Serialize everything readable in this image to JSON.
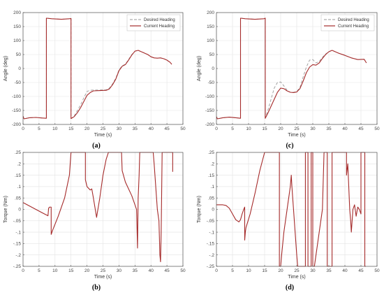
{
  "chart_data": [
    {
      "type": "line",
      "panel_label": "(a)",
      "xlabel": "Time (s)",
      "ylabel": "Angle (deg)",
      "xlim": [
        0,
        50
      ],
      "ylim": [
        -200,
        200
      ],
      "xticks": [
        0,
        5,
        10,
        15,
        20,
        25,
        30,
        35,
        40,
        45,
        50
      ],
      "yticks": [
        -200,
        -150,
        -100,
        -50,
        0,
        50,
        100,
        150,
        200
      ],
      "grid": true,
      "legend": "top-right",
      "series": [
        {
          "name": "Desired Heading",
          "style": "dashed",
          "color": "#9a9a9a",
          "x": [
            0,
            0.3,
            2,
            4,
            6,
            7.3,
            7.3,
            7.4,
            9,
            12,
            14.5,
            15,
            15,
            16,
            17,
            18,
            19,
            20,
            21,
            22,
            24,
            26,
            27,
            28,
            29,
            30,
            31,
            32,
            33,
            34,
            35,
            36,
            37,
            38,
            39,
            40,
            41,
            42,
            43,
            44,
            45,
            46,
            46.5
          ],
          "y": [
            -170,
            -180,
            -176,
            -175,
            -177,
            -178,
            180,
            180,
            178,
            176,
            178,
            179,
            -179,
            -170,
            -150,
            -130,
            -105,
            -82,
            -78,
            -77,
            -77,
            -76,
            -70,
            -55,
            -35,
            -5,
            10,
            15,
            32,
            50,
            62,
            65,
            60,
            55,
            50,
            42,
            38,
            37,
            38,
            35,
            30,
            22,
            15
          ]
        },
        {
          "name": "Current Heading",
          "style": "solid",
          "color": "#a52a2a",
          "x": [
            0,
            0.3,
            2,
            4,
            6,
            7.3,
            7.3,
            7.4,
            9,
            12,
            14.5,
            15,
            15,
            16,
            17,
            18,
            19,
            20,
            21,
            22,
            24,
            26,
            27,
            28,
            29,
            30,
            31,
            32,
            33,
            34,
            35,
            36,
            37,
            38,
            39,
            40,
            41,
            42,
            43,
            44,
            45,
            46,
            46.5
          ],
          "y": [
            -170,
            -180,
            -176,
            -175,
            -177,
            -178,
            180,
            180,
            178,
            176,
            178,
            179,
            -179,
            -172,
            -158,
            -140,
            -118,
            -96,
            -86,
            -80,
            -79,
            -78,
            -73,
            -58,
            -38,
            -8,
            8,
            14,
            30,
            48,
            62,
            65,
            60,
            55,
            50,
            42,
            38,
            37,
            38,
            35,
            30,
            22,
            15
          ]
        }
      ]
    },
    {
      "type": "line",
      "panel_label": "(b)",
      "xlabel": "Time (s)",
      "ylabel": "Torque (Nm)",
      "xlim": [
        0,
        50
      ],
      "ylim": [
        -0.25,
        0.25
      ],
      "xticks": [
        0,
        5,
        10,
        15,
        20,
        25,
        30,
        35,
        40,
        45,
        50
      ],
      "yticks": [
        -0.25,
        -0.2,
        -0.15,
        -0.1,
        -0.05,
        0,
        0.05,
        0.1,
        0.15,
        0.2,
        0.25
      ],
      "grid": true,
      "series": [
        {
          "name": "",
          "style": "solid",
          "color": "#a52a2a",
          "x": [
            0,
            2,
            4,
            6,
            7.8,
            8,
            8.3,
            8.8,
            8.8,
            9.3,
            11,
            13,
            14.5,
            15,
            19.5,
            19.5,
            20,
            21,
            21.5,
            22,
            23,
            24,
            25,
            26,
            26.7,
            27,
            30.8,
            31,
            32,
            34,
            35.5,
            35.8,
            36,
            36.3,
            36.5,
            37,
            40.7,
            41,
            41.5,
            42,
            42.5,
            42.8,
            43,
            43.2,
            43.5,
            46.5,
            46.8,
            46.8
          ],
          "y": [
            0.03,
            0.015,
            0.0,
            -0.015,
            -0.028,
            0.005,
            0.01,
            0.01,
            -0.11,
            -0.09,
            -0.03,
            0.05,
            0.15,
            0.25,
            0.25,
            0.13,
            0.1,
            0.085,
            0.09,
            0.05,
            -0.035,
            0.05,
            0.15,
            0.22,
            0.25,
            0.25,
            0.25,
            0.17,
            0.12,
            0.06,
            0.0,
            -0.17,
            0.05,
            0.15,
            0.25,
            0.25,
            0.25,
            0.2,
            0.1,
            0.0,
            -0.05,
            -0.2,
            -0.23,
            -0.1,
            0.25,
            0.25,
            0.25,
            0.165
          ]
        }
      ]
    },
    {
      "type": "line",
      "panel_label": "(c)",
      "xlabel": "Time (s)",
      "ylabel": "Angle (deg)",
      "xlim": [
        0,
        50
      ],
      "ylim": [
        -200,
        200
      ],
      "xticks": [
        0,
        5,
        10,
        15,
        20,
        25,
        30,
        35,
        40,
        45,
        50
      ],
      "yticks": [
        -200,
        -150,
        -100,
        -50,
        0,
        50,
        100,
        150,
        200
      ],
      "grid": true,
      "legend": "top-right",
      "series": [
        {
          "name": "Desired Heading",
          "style": "dashed",
          "color": "#9a9a9a",
          "x": [
            0,
            0.3,
            2,
            4,
            6,
            7.5,
            7.5,
            7.6,
            9,
            12,
            14.8,
            15.2,
            15.2,
            16,
            17,
            18,
            19,
            20,
            21,
            22,
            23,
            24,
            25,
            26,
            27,
            28,
            29,
            30,
            31,
            32,
            33,
            34,
            35,
            36,
            37,
            38,
            40,
            42,
            44,
            46,
            46.7
          ],
          "y": [
            -172,
            -180,
            -176,
            -174,
            -176,
            -178,
            180,
            180,
            178,
            176,
            178,
            180,
            -178,
            -150,
            -110,
            -70,
            -50,
            -48,
            -62,
            -78,
            -85,
            -85,
            -82,
            -68,
            -30,
            5,
            30,
            32,
            20,
            25,
            40,
            52,
            60,
            65,
            60,
            55,
            47,
            38,
            32,
            33,
            20
          ]
        },
        {
          "name": "Current Heading",
          "style": "solid",
          "color": "#a52a2a",
          "x": [
            0,
            0.3,
            2,
            4,
            6,
            7.5,
            7.5,
            7.6,
            9,
            12,
            14.8,
            15.2,
            15.2,
            16,
            17,
            18,
            19,
            20,
            21,
            22,
            23,
            24,
            25,
            26,
            27,
            28,
            29,
            30,
            31,
            32,
            33,
            34,
            35,
            36,
            37,
            38,
            40,
            42,
            44,
            46,
            46.7
          ],
          "y": [
            -172,
            -180,
            -176,
            -174,
            -176,
            -178,
            180,
            180,
            178,
            176,
            178,
            180,
            -178,
            -160,
            -135,
            -110,
            -85,
            -70,
            -72,
            -80,
            -85,
            -86,
            -84,
            -72,
            -45,
            -15,
            5,
            14,
            12,
            20,
            36,
            50,
            60,
            65,
            60,
            55,
            47,
            38,
            32,
            33,
            20
          ]
        }
      ]
    },
    {
      "type": "line",
      "panel_label": "(d)",
      "xlabel": "Time (s)",
      "ylabel": "Torque (Nm)",
      "xlim": [
        0,
        50
      ],
      "ylim": [
        -0.25,
        0.25
      ],
      "xticks": [
        0,
        5,
        10,
        15,
        20,
        25,
        30,
        35,
        40,
        45,
        50
      ],
      "yticks": [
        -0.25,
        -0.2,
        -0.15,
        -0.1,
        -0.05,
        0,
        0.05,
        0.1,
        0.15,
        0.2,
        0.25
      ],
      "grid": true,
      "series": [
        {
          "name": "",
          "style": "solid",
          "color": "#a52a2a",
          "x": [
            0,
            2,
            3,
            4,
            5,
            6,
            7,
            7.5,
            8,
            8.5,
            8.8,
            8.8,
            9,
            9.2,
            10.5,
            12,
            13.5,
            15,
            19.6,
            19.6,
            20,
            20.3,
            20.3,
            21,
            22,
            23,
            23.3,
            23.5,
            24,
            24.5,
            25,
            25.3,
            27.5,
            27.7,
            27.7,
            28.5,
            28.5,
            29.5,
            29.5,
            30,
            30,
            30.5,
            31.5,
            32,
            33,
            33.5,
            33.5,
            34.5,
            34.5,
            36,
            36,
            36.5,
            37,
            40.5,
            40.5,
            40.9,
            41.2,
            41.5,
            41.8,
            42,
            42.5,
            43,
            43.5,
            44,
            44.5,
            45,
            45,
            45.5,
            46.2,
            46.2,
            46.5
          ],
          "y": [
            0.02,
            0.02,
            0.017,
            0.005,
            -0.02,
            -0.045,
            -0.055,
            -0.045,
            -0.02,
            0.0,
            0.01,
            -0.135,
            -0.1,
            -0.08,
            -0.02,
            0.07,
            0.17,
            0.25,
            0.25,
            -0.25,
            -0.25,
            -0.2,
            -0.2,
            -0.1,
            0.0,
            0.1,
            0.15,
            0.1,
            0.0,
            -0.1,
            -0.2,
            -0.25,
            -0.25,
            -0.25,
            0.25,
            0.25,
            -0.25,
            -0.25,
            0.25,
            0.25,
            -0.25,
            -0.25,
            -0.15,
            -0.1,
            0.0,
            0.25,
            0.25,
            0.25,
            -0.25,
            -0.25,
            0.25,
            0.25,
            0.25,
            0.25,
            0.15,
            0.2,
            0.1,
            0.0,
            -0.05,
            -0.1,
            0.0,
            0.02,
            -0.03,
            0.01,
            0.0,
            -0.02,
            0.25,
            0.25,
            0.25,
            -0.25,
            -0.25
          ]
        }
      ]
    }
  ]
}
